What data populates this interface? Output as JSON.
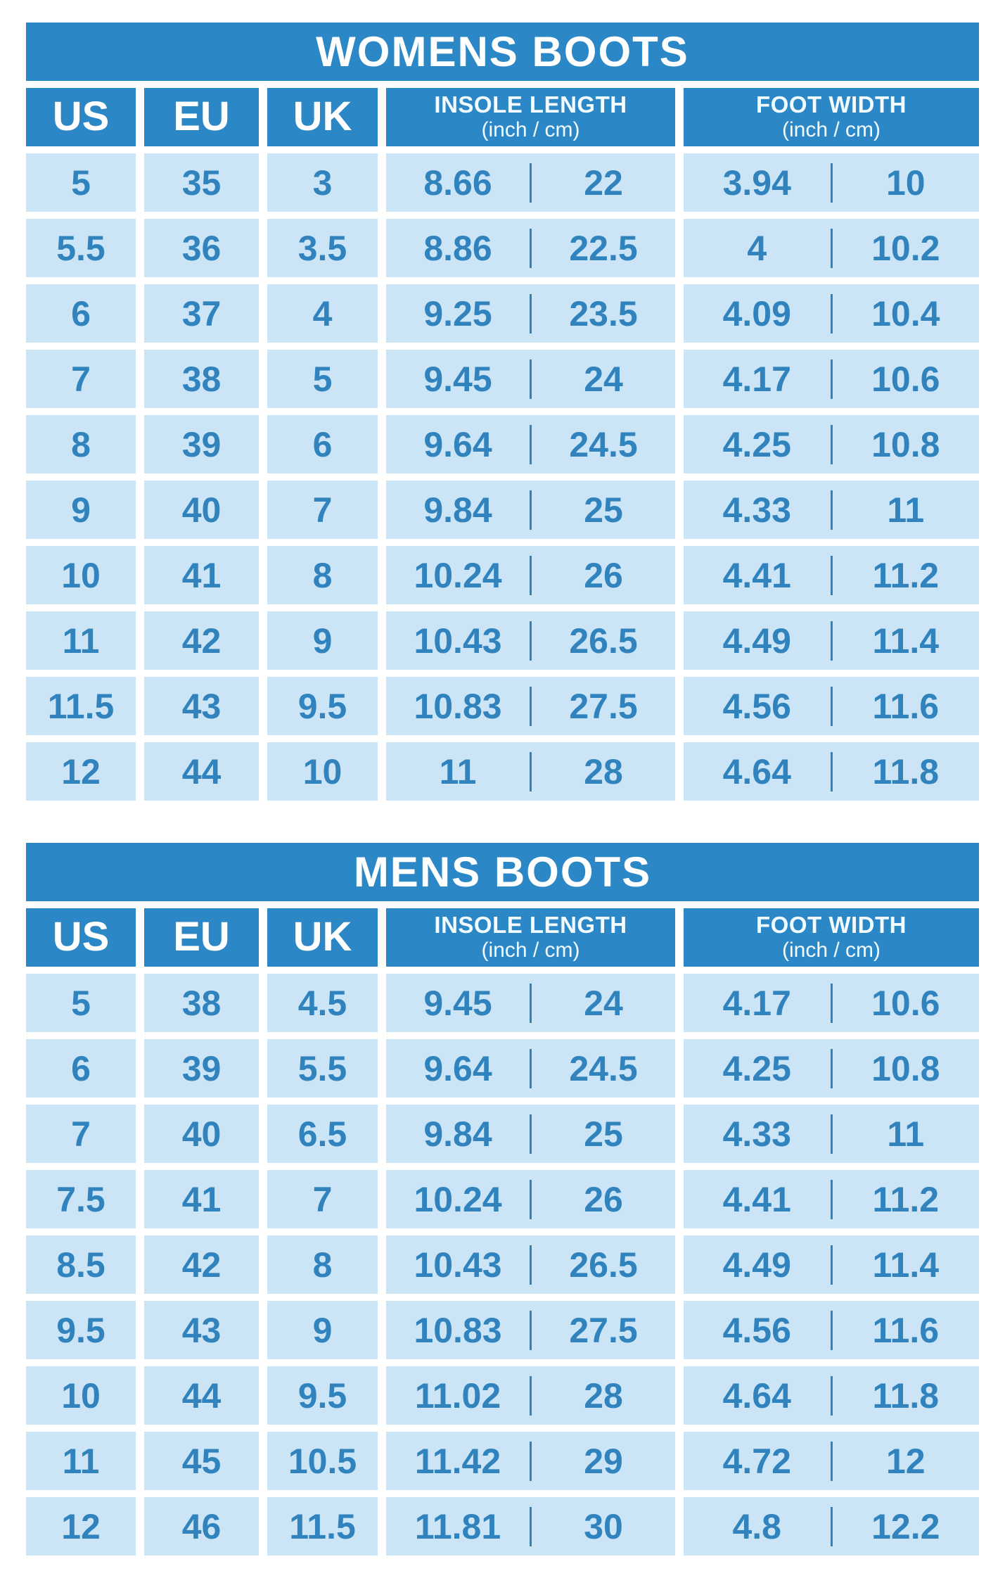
{
  "colors": {
    "bar_blue": "#2b87c6",
    "cell_blue": "#cbe5f7",
    "text_blue": "#3083bd",
    "header_text": "#ffffff",
    "background": "#ffffff"
  },
  "chart_data": [
    {
      "type": "table",
      "title": "WOMENS BOOTS",
      "column_groups": [
        {
          "label": "US"
        },
        {
          "label": "EU"
        },
        {
          "label": "UK"
        },
        {
          "label": "INSOLE LENGTH",
          "sublabel": "(inch / cm)"
        },
        {
          "label": "FOOT WIDTH",
          "sublabel": "(inch / cm)"
        }
      ],
      "rows": [
        {
          "us": "5",
          "eu": "35",
          "uk": "3",
          "in_inch": "8.66",
          "in_cm": "22",
          "ft_inch": "3.94",
          "ft_cm": "10"
        },
        {
          "us": "5.5",
          "eu": "36",
          "uk": "3.5",
          "in_inch": "8.86",
          "in_cm": "22.5",
          "ft_inch": "4",
          "ft_cm": "10.2"
        },
        {
          "us": "6",
          "eu": "37",
          "uk": "4",
          "in_inch": "9.25",
          "in_cm": "23.5",
          "ft_inch": "4.09",
          "ft_cm": "10.4"
        },
        {
          "us": "7",
          "eu": "38",
          "uk": "5",
          "in_inch": "9.45",
          "in_cm": "24",
          "ft_inch": "4.17",
          "ft_cm": "10.6"
        },
        {
          "us": "8",
          "eu": "39",
          "uk": "6",
          "in_inch": "9.64",
          "in_cm": "24.5",
          "ft_inch": "4.25",
          "ft_cm": "10.8"
        },
        {
          "us": "9",
          "eu": "40",
          "uk": "7",
          "in_inch": "9.84",
          "in_cm": "25",
          "ft_inch": "4.33",
          "ft_cm": "11"
        },
        {
          "us": "10",
          "eu": "41",
          "uk": "8",
          "in_inch": "10.24",
          "in_cm": "26",
          "ft_inch": "4.41",
          "ft_cm": "11.2"
        },
        {
          "us": "11",
          "eu": "42",
          "uk": "9",
          "in_inch": "10.43",
          "in_cm": "26.5",
          "ft_inch": "4.49",
          "ft_cm": "11.4"
        },
        {
          "us": "11.5",
          "eu": "43",
          "uk": "9.5",
          "in_inch": "10.83",
          "in_cm": "27.5",
          "ft_inch": "4.56",
          "ft_cm": "11.6"
        },
        {
          "us": "12",
          "eu": "44",
          "uk": "10",
          "in_inch": "11",
          "in_cm": "28",
          "ft_inch": "4.64",
          "ft_cm": "11.8"
        }
      ]
    },
    {
      "type": "table",
      "title": "MENS BOOTS",
      "column_groups": [
        {
          "label": "US"
        },
        {
          "label": "EU"
        },
        {
          "label": "UK"
        },
        {
          "label": "INSOLE LENGTH",
          "sublabel": "(inch / cm)"
        },
        {
          "label": "FOOT WIDTH",
          "sublabel": "(inch / cm)"
        }
      ],
      "rows": [
        {
          "us": "5",
          "eu": "38",
          "uk": "4.5",
          "in_inch": "9.45",
          "in_cm": "24",
          "ft_inch": "4.17",
          "ft_cm": "10.6"
        },
        {
          "us": "6",
          "eu": "39",
          "uk": "5.5",
          "in_inch": "9.64",
          "in_cm": "24.5",
          "ft_inch": "4.25",
          "ft_cm": "10.8"
        },
        {
          "us": "7",
          "eu": "40",
          "uk": "6.5",
          "in_inch": "9.84",
          "in_cm": "25",
          "ft_inch": "4.33",
          "ft_cm": "11"
        },
        {
          "us": "7.5",
          "eu": "41",
          "uk": "7",
          "in_inch": "10.24",
          "in_cm": "26",
          "ft_inch": "4.41",
          "ft_cm": "11.2"
        },
        {
          "us": "8.5",
          "eu": "42",
          "uk": "8",
          "in_inch": "10.43",
          "in_cm": "26.5",
          "ft_inch": "4.49",
          "ft_cm": "11.4"
        },
        {
          "us": "9.5",
          "eu": "43",
          "uk": "9",
          "in_inch": "10.83",
          "in_cm": "27.5",
          "ft_inch": "4.56",
          "ft_cm": "11.6"
        },
        {
          "us": "10",
          "eu": "44",
          "uk": "9.5",
          "in_inch": "11.02",
          "in_cm": "28",
          "ft_inch": "4.64",
          "ft_cm": "11.8"
        },
        {
          "us": "11",
          "eu": "45",
          "uk": "10.5",
          "in_inch": "11.42",
          "in_cm": "29",
          "ft_inch": "4.72",
          "ft_cm": "12"
        },
        {
          "us": "12",
          "eu": "46",
          "uk": "11.5",
          "in_inch": "11.81",
          "in_cm": "30",
          "ft_inch": "4.8",
          "ft_cm": "12.2"
        }
      ]
    }
  ]
}
